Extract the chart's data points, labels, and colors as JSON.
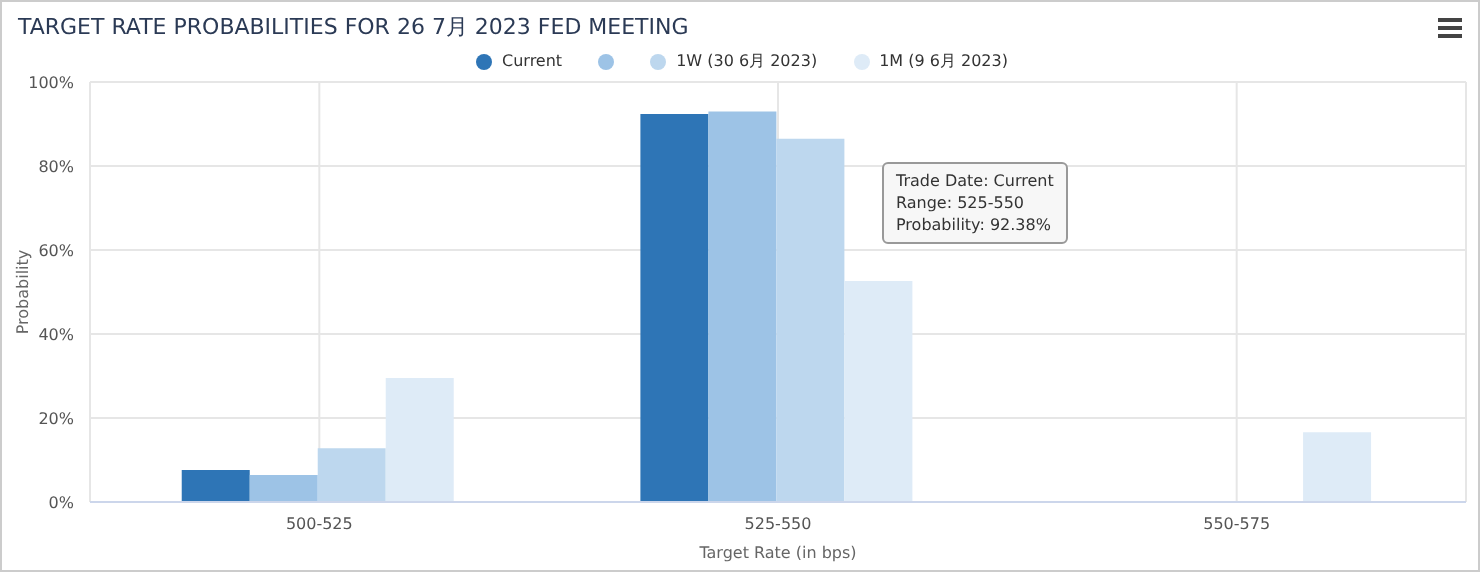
{
  "chart_data": {
    "type": "bar",
    "title": "TARGET RATE PROBABILITIES FOR 26 7月 2023 FED MEETING",
    "xlabel": "Target Rate (in bps)",
    "ylabel": "Probability",
    "categories": [
      "500-525",
      "525-550",
      "550-575"
    ],
    "series": [
      {
        "name": "Current",
        "color": "#2e75b6",
        "values": [
          7.6,
          92.38,
          null
        ]
      },
      {
        "color": "#9dc3e6",
        "values": [
          6.4,
          93,
          null
        ]
      },
      {
        "name": "1W (30 6月 2023)",
        "color": "#bdd7ee",
        "values": [
          12.8,
          86.5,
          null
        ]
      },
      {
        "name": "1M (9 6月 2023)",
        "color": "#deebf7",
        "values": [
          29.5,
          52.6,
          16.6
        ]
      }
    ],
    "ylim": [
      0,
      100
    ],
    "yticks": [
      {
        "value": 0,
        "label": "0%"
      },
      {
        "value": 20,
        "label": "20%"
      },
      {
        "value": 40,
        "label": "40%"
      },
      {
        "value": 60,
        "label": "60%"
      },
      {
        "value": 80,
        "label": "80%"
      },
      {
        "value": 100,
        "label": "100%"
      }
    ],
    "grid": true,
    "legend": "top",
    "annotations": [
      "Trade Date: Current",
      "Range: 525-550",
      "Probability: 92.38%"
    ]
  }
}
